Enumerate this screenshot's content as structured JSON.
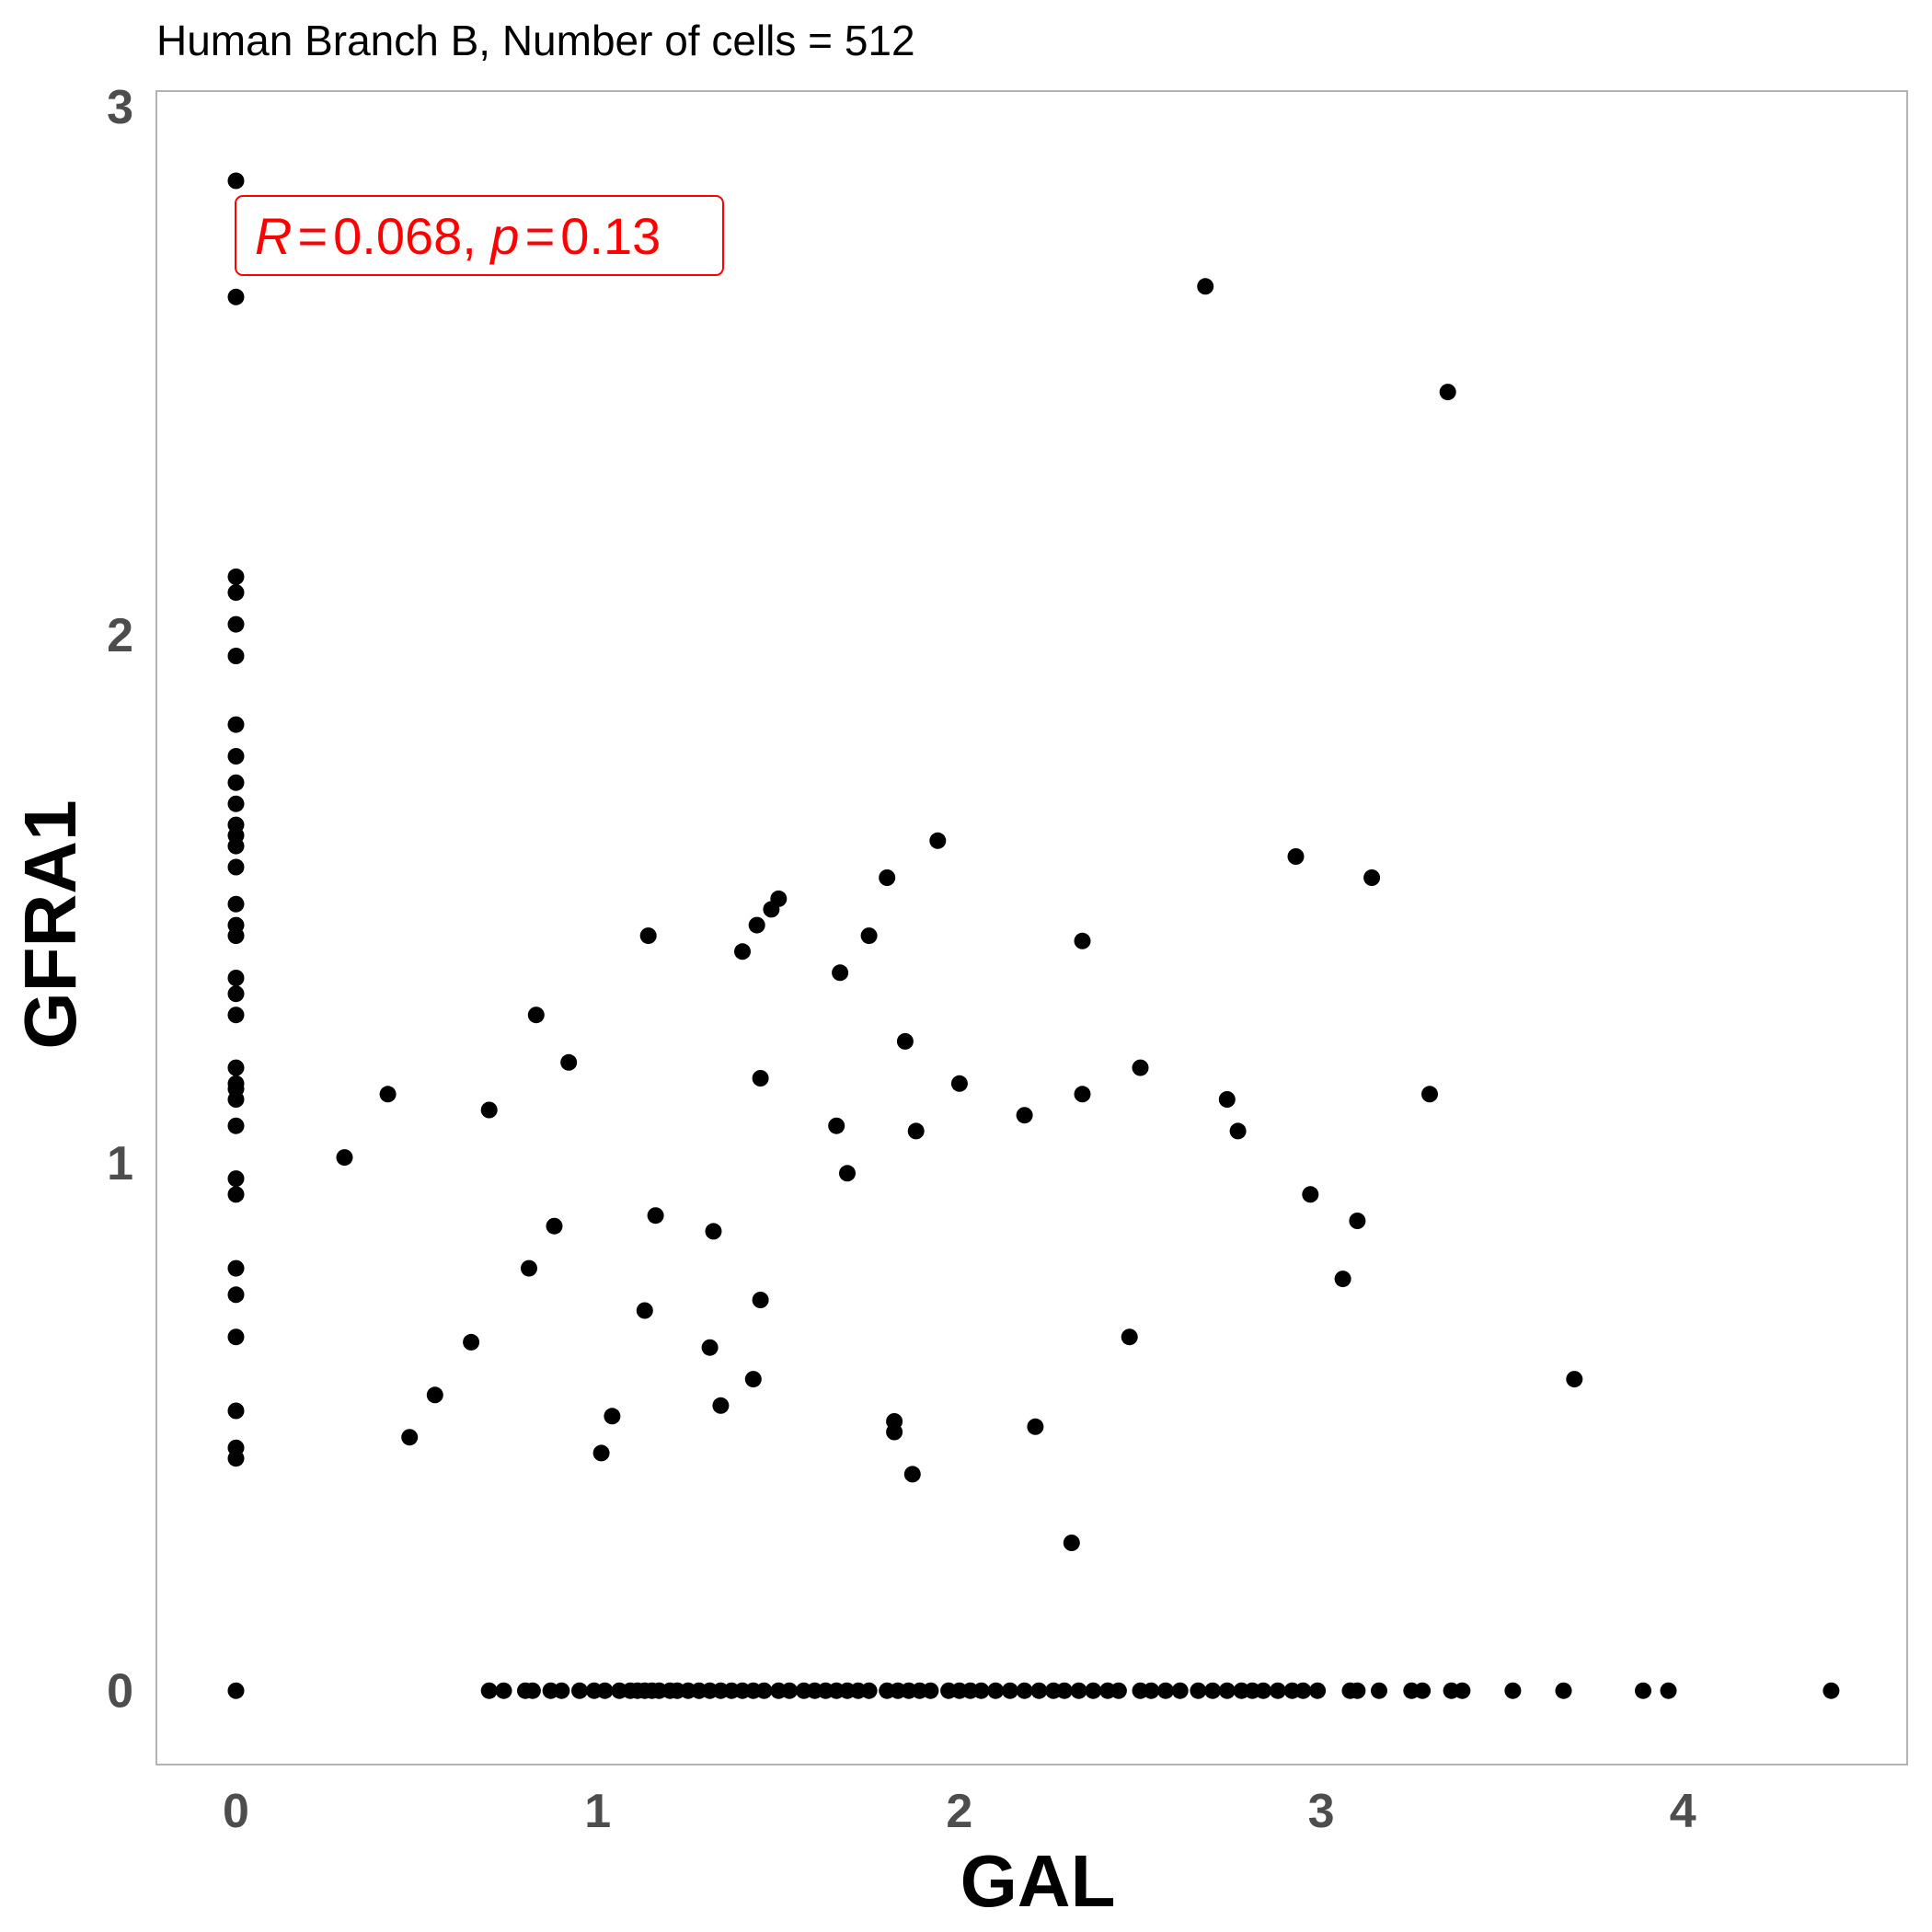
{
  "chart_data": {
    "type": "scatter",
    "title": "Human Branch B, Number of cells = 512",
    "xlabel": "GAL",
    "ylabel": "GFRA1",
    "xlim": [
      -0.22,
      4.62
    ],
    "ylim": [
      -0.14,
      3.03
    ],
    "x_ticks": [
      0,
      1,
      2,
      3,
      4
    ],
    "y_ticks": [
      0,
      1,
      2,
      3
    ],
    "x_tick_labels": [
      "0",
      "1",
      "2",
      "3",
      "4"
    ],
    "y_tick_labels": [
      "0",
      "1",
      "2",
      "3"
    ],
    "grid": false,
    "point_color": "#000000",
    "annotation": {
      "r_symbol": "R",
      "equals": "=",
      "r_value": "0.068",
      "sep": ", ",
      "p_symbol": "p",
      "p_value": "0.13",
      "color": "#ff0000",
      "placement": "top-left"
    },
    "points": [
      [
        0,
        2.86
      ],
      [
        0,
        2.64
      ],
      [
        0,
        2.11
      ],
      [
        0,
        2.08
      ],
      [
        0,
        2.02
      ],
      [
        0,
        1.96
      ],
      [
        0,
        1.83
      ],
      [
        0,
        1.77
      ],
      [
        0,
        1.72
      ],
      [
        0,
        1.68
      ],
      [
        0,
        1.64
      ],
      [
        0,
        1.62
      ],
      [
        0,
        1.6
      ],
      [
        0,
        1.56
      ],
      [
        0,
        1.49
      ],
      [
        0,
        1.45
      ],
      [
        0,
        1.43
      ],
      [
        0,
        1.35
      ],
      [
        0,
        1.32
      ],
      [
        0,
        1.28
      ],
      [
        0,
        1.18
      ],
      [
        0,
        1.15
      ],
      [
        0,
        1.14
      ],
      [
        0,
        1.12
      ],
      [
        0,
        1.07
      ],
      [
        0,
        0.97
      ],
      [
        0,
        0.94
      ],
      [
        0,
        0.8
      ],
      [
        0,
        0.75
      ],
      [
        0,
        0.67
      ],
      [
        0,
        0.53
      ],
      [
        0,
        0.46
      ],
      [
        0,
        0.44
      ],
      [
        0,
        0
      ],
      [
        0.3,
        1.01
      ],
      [
        0.42,
        1.13
      ],
      [
        0.48,
        0.48
      ],
      [
        0.55,
        0.56
      ],
      [
        0.65,
        0.66
      ],
      [
        0.7,
        1.1
      ],
      [
        0.81,
        0.8
      ],
      [
        0.83,
        1.28
      ],
      [
        0.88,
        0.88
      ],
      [
        0.92,
        1.19
      ],
      [
        1.01,
        0.45
      ],
      [
        1.04,
        0.52
      ],
      [
        1.13,
        0.72
      ],
      [
        1.14,
        1.43
      ],
      [
        1.16,
        0.9
      ],
      [
        1.31,
        0.65
      ],
      [
        1.32,
        0.87
      ],
      [
        1.34,
        0.54
      ],
      [
        1.4,
        1.4
      ],
      [
        1.43,
        0.59
      ],
      [
        1.44,
        1.45
      ],
      [
        1.45,
        1.16
      ],
      [
        1.45,
        0.74
      ],
      [
        1.48,
        1.48
      ],
      [
        1.5,
        1.5
      ],
      [
        1.66,
        1.07
      ],
      [
        1.67,
        1.36
      ],
      [
        1.69,
        0.98
      ],
      [
        1.75,
        1.43
      ],
      [
        1.8,
        1.54
      ],
      [
        1.82,
        0.49
      ],
      [
        1.82,
        0.51
      ],
      [
        1.85,
        1.23
      ],
      [
        1.87,
        0.41
      ],
      [
        1.88,
        1.06
      ],
      [
        1.94,
        1.61
      ],
      [
        2.0,
        1.15
      ],
      [
        2.18,
        1.09
      ],
      [
        2.21,
        0.5
      ],
      [
        2.31,
        0.28
      ],
      [
        2.34,
        1.42
      ],
      [
        2.34,
        1.13
      ],
      [
        2.47,
        0.67
      ],
      [
        2.5,
        1.18
      ],
      [
        2.68,
        2.66
      ],
      [
        2.74,
        1.12
      ],
      [
        2.77,
        1.06
      ],
      [
        2.93,
        1.58
      ],
      [
        2.97,
        0.94
      ],
      [
        3.06,
        0.78
      ],
      [
        3.1,
        0.89
      ],
      [
        3.14,
        1.54
      ],
      [
        3.3,
        1.13
      ],
      [
        3.35,
        2.46
      ],
      [
        3.7,
        0.59
      ],
      [
        0.7,
        0
      ],
      [
        0.74,
        0
      ],
      [
        0.8,
        0
      ],
      [
        0.82,
        0
      ],
      [
        0.87,
        0
      ],
      [
        0.9,
        0
      ],
      [
        0.95,
        0
      ],
      [
        0.99,
        0
      ],
      [
        1.02,
        0
      ],
      [
        1.06,
        0
      ],
      [
        1.09,
        0
      ],
      [
        1.11,
        0
      ],
      [
        1.13,
        0
      ],
      [
        1.15,
        0
      ],
      [
        1.17,
        0
      ],
      [
        1.2,
        0
      ],
      [
        1.22,
        0
      ],
      [
        1.25,
        0
      ],
      [
        1.28,
        0
      ],
      [
        1.31,
        0
      ],
      [
        1.34,
        0
      ],
      [
        1.37,
        0
      ],
      [
        1.4,
        0
      ],
      [
        1.43,
        0
      ],
      [
        1.46,
        0
      ],
      [
        1.5,
        0
      ],
      [
        1.53,
        0
      ],
      [
        1.57,
        0
      ],
      [
        1.6,
        0
      ],
      [
        1.63,
        0
      ],
      [
        1.66,
        0
      ],
      [
        1.69,
        0
      ],
      [
        1.72,
        0
      ],
      [
        1.75,
        0
      ],
      [
        1.8,
        0
      ],
      [
        1.83,
        0
      ],
      [
        1.86,
        0
      ],
      [
        1.89,
        0
      ],
      [
        1.92,
        0
      ],
      [
        1.97,
        0
      ],
      [
        2.0,
        0
      ],
      [
        2.03,
        0
      ],
      [
        2.06,
        0
      ],
      [
        2.1,
        0
      ],
      [
        2.14,
        0
      ],
      [
        2.18,
        0
      ],
      [
        2.22,
        0
      ],
      [
        2.26,
        0
      ],
      [
        2.29,
        0
      ],
      [
        2.33,
        0
      ],
      [
        2.37,
        0
      ],
      [
        2.41,
        0
      ],
      [
        2.44,
        0
      ],
      [
        2.5,
        0
      ],
      [
        2.53,
        0
      ],
      [
        2.57,
        0
      ],
      [
        2.61,
        0
      ],
      [
        2.66,
        0
      ],
      [
        2.7,
        0
      ],
      [
        2.74,
        0
      ],
      [
        2.78,
        0
      ],
      [
        2.81,
        0
      ],
      [
        2.84,
        0
      ],
      [
        2.88,
        0
      ],
      [
        2.92,
        0
      ],
      [
        2.95,
        0
      ],
      [
        2.99,
        0
      ],
      [
        3.08,
        0
      ],
      [
        3.1,
        0
      ],
      [
        3.16,
        0
      ],
      [
        3.25,
        0
      ],
      [
        3.28,
        0
      ],
      [
        3.36,
        0
      ],
      [
        3.39,
        0
      ],
      [
        3.53,
        0
      ],
      [
        3.67,
        0
      ],
      [
        3.89,
        0
      ],
      [
        3.96,
        0
      ],
      [
        4.41,
        0
      ]
    ]
  }
}
